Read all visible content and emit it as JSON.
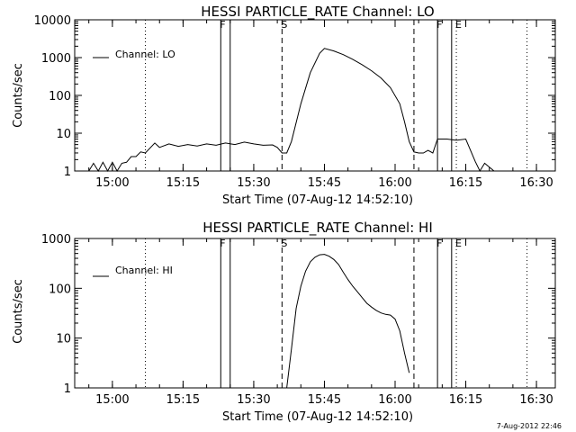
{
  "chart_data": [
    {
      "type": "line",
      "title": "HESSI PARTICLE_RATE Channel: LO",
      "xlabel": "Start Time (07-Aug-12 14:52:10)",
      "ylabel": "Counts/sec",
      "y_scale": "log",
      "ylim": [
        1,
        10000
      ],
      "xlim": [
        "14:52",
        "16:34"
      ],
      "x_ticks": [
        "15:00",
        "15:15",
        "15:30",
        "15:45",
        "16:00",
        "16:15",
        "16:30"
      ],
      "y_ticks": [
        "1",
        "10",
        "100",
        "1000",
        "10000"
      ],
      "legend": {
        "placement": "top-left",
        "entries": [
          "Channel: LO"
        ]
      },
      "grid": false,
      "markers": [
        {
          "label": "",
          "time": "15:07",
          "style": "dotted"
        },
        {
          "label": "F",
          "time": "15:23",
          "style": "solid"
        },
        {
          "label": "",
          "time": "15:25",
          "style": "solid"
        },
        {
          "label": "S",
          "time": "15:36",
          "style": "dashed"
        },
        {
          "label": "",
          "time": "16:04",
          "style": "dashed"
        },
        {
          "label": "F",
          "time": "16:09",
          "style": "solid"
        },
        {
          "label": "",
          "time": "16:12",
          "style": "solid"
        },
        {
          "label": "E",
          "time": "16:13",
          "style": "dotted"
        },
        {
          "label": "",
          "time": "16:28",
          "style": "dotted"
        }
      ],
      "series": [
        {
          "name": "Channel: LO",
          "x": [
            "14:55",
            "14:56",
            "14:57",
            "14:58",
            "14:59",
            "15:00",
            "15:01",
            "15:02",
            "15:03",
            "15:04",
            "15:05",
            "15:06",
            "15:07",
            "15:09",
            "15:10",
            "15:12",
            "15:14",
            "15:16",
            "15:18",
            "15:20",
            "15:22",
            "15:24",
            "15:26",
            "15:28",
            "15:30",
            "15:32",
            "15:34",
            "15:35",
            "15:36",
            "15:37",
            "15:38",
            "15:40",
            "15:42",
            "15:44",
            "15:45",
            "15:47",
            "15:49",
            "15:51",
            "15:53",
            "15:55",
            "15:57",
            "15:59",
            "16:01",
            "16:02",
            "16:03",
            "16:04",
            "16:05",
            "16:06",
            "16:07",
            "16:08",
            "16:09",
            "16:11",
            "16:13",
            "16:15",
            "16:17",
            "16:18",
            "16:19",
            "16:21",
            "16:23",
            "16:25",
            "16:28"
          ],
          "y": [
            1,
            1.6,
            1,
            1.7,
            1,
            1.7,
            1,
            1.6,
            1.7,
            2.4,
            2.4,
            3.2,
            3.0,
            5.5,
            4.2,
            5.2,
            4.5,
            5.0,
            4.6,
            5.2,
            4.8,
            5.5,
            5.0,
            5.8,
            5.2,
            4.8,
            4.9,
            4.2,
            3.0,
            3.0,
            6.0,
            60,
            400,
            1300,
            1750,
            1500,
            1200,
            900,
            650,
            450,
            290,
            160,
            60,
            20,
            6,
            3.2,
            3.0,
            3.0,
            3.5,
            3.0,
            7.0,
            7.0,
            6.5,
            7.0,
            1.8,
            1.0,
            1.6,
            1.0,
            1.0,
            1.0,
            1.0
          ]
        }
      ]
    },
    {
      "type": "line",
      "title": "HESSI PARTICLE_RATE Channel: HI",
      "xlabel": "Start Time (07-Aug-12 14:52:10)",
      "ylabel": "Counts/sec",
      "y_scale": "log",
      "ylim": [
        1,
        1000
      ],
      "xlim": [
        "14:52",
        "16:34"
      ],
      "x_ticks": [
        "15:00",
        "15:15",
        "15:30",
        "15:45",
        "16:00",
        "16:15",
        "16:30"
      ],
      "y_ticks": [
        "1",
        "10",
        "100",
        "1000"
      ],
      "legend": {
        "placement": "top-left",
        "entries": [
          "Channel: HI"
        ]
      },
      "grid": false,
      "markers": [
        {
          "label": "",
          "time": "15:07",
          "style": "dotted"
        },
        {
          "label": "F",
          "time": "15:23",
          "style": "solid"
        },
        {
          "label": "",
          "time": "15:25",
          "style": "solid"
        },
        {
          "label": "S",
          "time": "15:36",
          "style": "dashed"
        },
        {
          "label": "",
          "time": "16:04",
          "style": "dashed"
        },
        {
          "label": "F",
          "time": "16:09",
          "style": "solid"
        },
        {
          "label": "",
          "time": "16:12",
          "style": "solid"
        },
        {
          "label": "E",
          "time": "16:13",
          "style": "dotted"
        },
        {
          "label": "",
          "time": "16:28",
          "style": "dotted"
        }
      ],
      "series": [
        {
          "name": "Channel: HI",
          "x": [
            "15:37",
            "15:38",
            "15:39",
            "15:40",
            "15:41",
            "15:42",
            "15:43",
            "15:44",
            "15:45",
            "15:46",
            "15:47",
            "15:48",
            "15:49",
            "15:50",
            "15:51",
            "15:52",
            "15:53",
            "15:54",
            "15:55",
            "15:56",
            "15:57",
            "15:58",
            "15:59",
            "16:00",
            "16:01",
            "16:02",
            "16:03"
          ],
          "y": [
            1.0,
            6.0,
            40,
            110,
            220,
            340,
            420,
            470,
            480,
            440,
            380,
            300,
            210,
            150,
            110,
            85,
            65,
            50,
            42,
            36,
            32,
            30,
            29,
            24,
            14,
            5,
            2
          ]
        }
      ]
    }
  ],
  "timestamp": "7-Aug-2012 22:46"
}
